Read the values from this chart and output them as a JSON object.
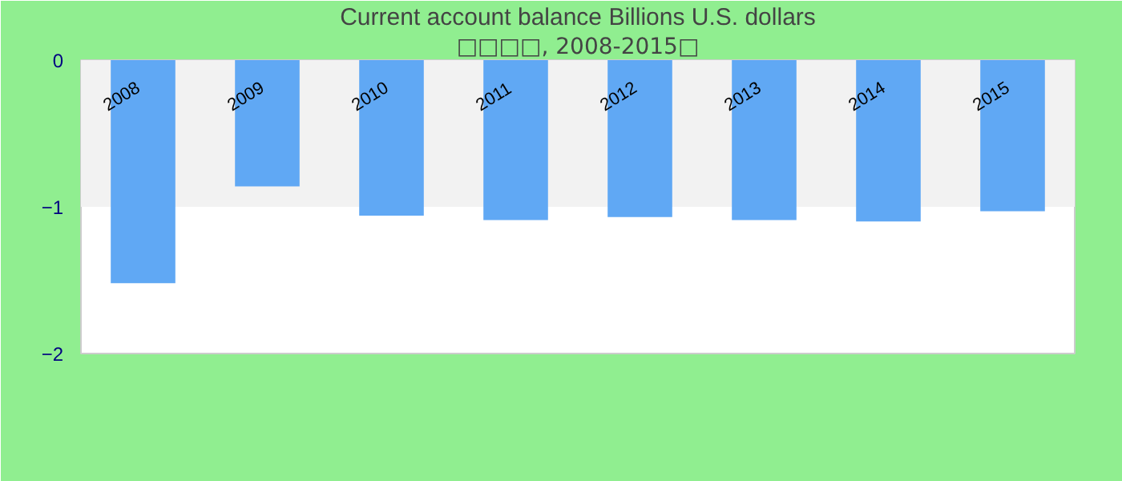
{
  "chart_data": {
    "type": "bar",
    "title": "Current account balance Billions U.S. dollars",
    "subtitle": "□□□□, 2008-2015□",
    "categories": [
      "2008",
      "2009",
      "2010",
      "2011",
      "2012",
      "2013",
      "2014",
      "2015"
    ],
    "values": [
      -1.52,
      -0.86,
      -1.06,
      -1.09,
      -1.07,
      -1.09,
      -1.1,
      -1.03
    ],
    "color": "#60a8f4",
    "ylim": [
      -2,
      0
    ],
    "yticks": [
      -2,
      -1,
      0
    ],
    "bands": [
      {
        "axis": "y",
        "from": -1,
        "to": 0,
        "color": "#f2f2f2"
      }
    ]
  }
}
